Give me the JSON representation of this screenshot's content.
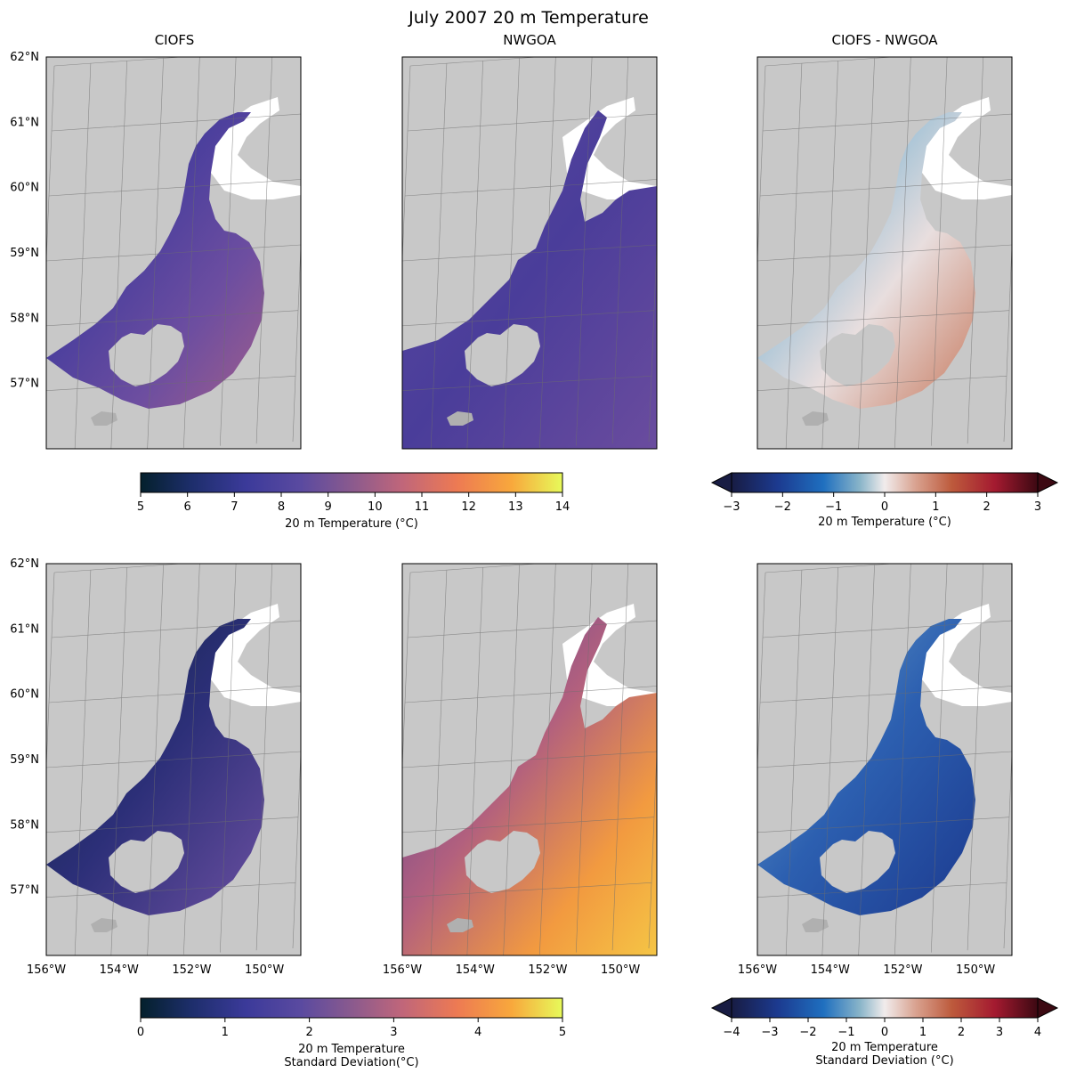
{
  "figure": {
    "title": "July 2007 20 m Temperature",
    "panel_titles": [
      "CIOFS",
      "NWGOA",
      "CIOFS - NWGOA"
    ]
  },
  "chart_data": {
    "type": "heatmap",
    "map": {
      "lon_range": [
        -156,
        -149
      ],
      "lat_range": [
        56,
        62
      ],
      "lat_ticks": [
        57,
        58,
        59,
        60,
        61,
        62
      ],
      "lat_tick_labels": [
        "57°N",
        "58°N",
        "59°N",
        "60°N",
        "61°N",
        "62°N"
      ],
      "lon_ticks": [
        -156,
        -154,
        -152,
        -150
      ],
      "lon_tick_labels": [
        "156°W",
        "154°W",
        "152°W",
        "150°W"
      ],
      "land_color": "#c8c8c8",
      "gridlines": true
    },
    "rows": [
      {
        "variable": "20 m Temperature",
        "panels": [
          {
            "title": "CIOFS",
            "colormap": "thermal",
            "domain": "ciofs"
          },
          {
            "title": "NWGOA",
            "colormap": "thermal",
            "domain": "nwgoa"
          },
          {
            "title": "CIOFS - NWGOA",
            "colormap": "balance",
            "domain": "diff"
          }
        ],
        "colorbar_main": {
          "label": "20 m Temperature (°C)",
          "range": [
            5,
            14
          ],
          "ticks": [
            "5",
            "6",
            "7",
            "8",
            "9",
            "10",
            "11",
            "12",
            "13",
            "14"
          ]
        },
        "colorbar_diff": {
          "label": "20 m Temperature (°C)",
          "range": [
            -3,
            3
          ],
          "ticks": [
            "−3",
            "−2",
            "−1",
            "0",
            "1",
            "2",
            "3"
          ],
          "extend": "both"
        }
      },
      {
        "variable": "20 m Temperature Standard Deviation",
        "panels": [
          {
            "title": "",
            "colormap": "thermal",
            "domain": "ciofs"
          },
          {
            "title": "",
            "colormap": "thermal",
            "domain": "nwgoa"
          },
          {
            "title": "",
            "colormap": "balance",
            "domain": "diff"
          }
        ],
        "colorbar_main": {
          "label_lines": [
            "20 m Temperature",
            "Standard Deviation(°C)"
          ],
          "range": [
            0,
            5
          ],
          "ticks": [
            "0",
            "1",
            "2",
            "3",
            "4",
            "5"
          ]
        },
        "colorbar_diff": {
          "label_lines": [
            "20 m Temperature",
            "Standard Deviation (°C)"
          ],
          "range": [
            -4,
            4
          ],
          "ticks": [
            "−4",
            "−3",
            "−2",
            "−1",
            "0",
            "1",
            "2",
            "3",
            "4"
          ],
          "extend": "both"
        }
      }
    ]
  }
}
